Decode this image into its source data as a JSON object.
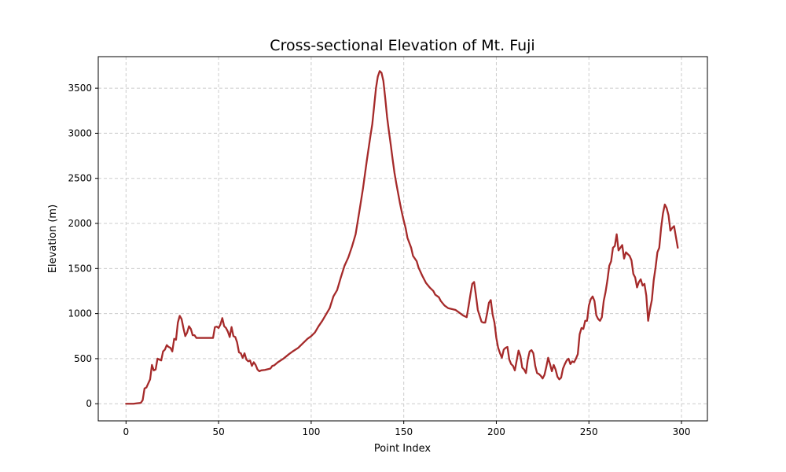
{
  "chart_data": {
    "type": "line",
    "title": "Cross-sectional Elevation of Mt. Fuji",
    "xlabel": "Point Index",
    "ylabel": "Elevation (m)",
    "xlim": [
      -15,
      314
    ],
    "ylim": [
      -190,
      3850
    ],
    "x_ticks": [
      0,
      50,
      100,
      150,
      200,
      250,
      300
    ],
    "y_ticks": [
      0,
      500,
      1000,
      1500,
      2000,
      2500,
      3000,
      3500
    ],
    "grid": true,
    "grid_style": "dashed",
    "line_color": "#a52a2a",
    "series": [
      {
        "points": [
          [
            0,
            0
          ],
          [
            2,
            0
          ],
          [
            4,
            0
          ],
          [
            6,
            5
          ],
          [
            8,
            10
          ],
          [
            9,
            40
          ],
          [
            10,
            170
          ],
          [
            11,
            180
          ],
          [
            13,
            270
          ],
          [
            14,
            430
          ],
          [
            15,
            370
          ],
          [
            16,
            380
          ],
          [
            17,
            500
          ],
          [
            18,
            490
          ],
          [
            19,
            480
          ],
          [
            20,
            580
          ],
          [
            21,
            600
          ],
          [
            22,
            650
          ],
          [
            23,
            630
          ],
          [
            24,
            620
          ],
          [
            25,
            580
          ],
          [
            26,
            720
          ],
          [
            27,
            710
          ],
          [
            28,
            900
          ],
          [
            29,
            975
          ],
          [
            30,
            940
          ],
          [
            31,
            840
          ],
          [
            32,
            750
          ],
          [
            33,
            790
          ],
          [
            34,
            860
          ],
          [
            35,
            830
          ],
          [
            36,
            760
          ],
          [
            37,
            760
          ],
          [
            38,
            730
          ],
          [
            40,
            730
          ],
          [
            42,
            730
          ],
          [
            45,
            730
          ],
          [
            47,
            730
          ],
          [
            48,
            850
          ],
          [
            49,
            855
          ],
          [
            50,
            840
          ],
          [
            51,
            880
          ],
          [
            52,
            950
          ],
          [
            53,
            860
          ],
          [
            54,
            840
          ],
          [
            55,
            800
          ],
          [
            56,
            740
          ],
          [
            57,
            850
          ],
          [
            58,
            750
          ],
          [
            59,
            740
          ],
          [
            60,
            680
          ],
          [
            61,
            570
          ],
          [
            62,
            560
          ],
          [
            63,
            510
          ],
          [
            64,
            560
          ],
          [
            65,
            490
          ],
          [
            66,
            470
          ],
          [
            67,
            480
          ],
          [
            68,
            420
          ],
          [
            69,
            460
          ],
          [
            70,
            430
          ],
          [
            71,
            380
          ],
          [
            72,
            360
          ],
          [
            73,
            370
          ],
          [
            75,
            375
          ],
          [
            78,
            390
          ],
          [
            79,
            420
          ],
          [
            80,
            425
          ],
          [
            82,
            460
          ],
          [
            85,
            500
          ],
          [
            88,
            550
          ],
          [
            90,
            580
          ],
          [
            93,
            620
          ],
          [
            95,
            660
          ],
          [
            98,
            720
          ],
          [
            100,
            750
          ],
          [
            102,
            790
          ],
          [
            104,
            860
          ],
          [
            106,
            920
          ],
          [
            108,
            990
          ],
          [
            110,
            1060
          ],
          [
            112,
            1190
          ],
          [
            114,
            1260
          ],
          [
            116,
            1400
          ],
          [
            118,
            1530
          ],
          [
            120,
            1620
          ],
          [
            122,
            1740
          ],
          [
            124,
            1880
          ],
          [
            126,
            2130
          ],
          [
            128,
            2390
          ],
          [
            130,
            2690
          ],
          [
            132,
            2970
          ],
          [
            133,
            3100
          ],
          [
            134,
            3300
          ],
          [
            135,
            3500
          ],
          [
            136,
            3630
          ],
          [
            137,
            3690
          ],
          [
            138,
            3670
          ],
          [
            139,
            3580
          ],
          [
            140,
            3390
          ],
          [
            141,
            3180
          ],
          [
            142,
            3020
          ],
          [
            143,
            2870
          ],
          [
            144,
            2710
          ],
          [
            145,
            2560
          ],
          [
            146,
            2440
          ],
          [
            147,
            2330
          ],
          [
            148,
            2220
          ],
          [
            149,
            2120
          ],
          [
            150,
            2030
          ],
          [
            151,
            1950
          ],
          [
            152,
            1840
          ],
          [
            154,
            1730
          ],
          [
            155,
            1640
          ],
          [
            157,
            1580
          ],
          [
            158,
            1510
          ],
          [
            160,
            1420
          ],
          [
            162,
            1340
          ],
          [
            164,
            1290
          ],
          [
            166,
            1250
          ],
          [
            167,
            1210
          ],
          [
            169,
            1180
          ],
          [
            170,
            1140
          ],
          [
            172,
            1090
          ],
          [
            174,
            1060
          ],
          [
            176,
            1050
          ],
          [
            178,
            1040
          ],
          [
            180,
            1010
          ],
          [
            182,
            980
          ],
          [
            184,
            960
          ],
          [
            185,
            1080
          ],
          [
            186,
            1210
          ],
          [
            187,
            1330
          ],
          [
            188,
            1350
          ],
          [
            189,
            1200
          ],
          [
            190,
            1040
          ],
          [
            192,
            910
          ],
          [
            193,
            900
          ],
          [
            194,
            900
          ],
          [
            195,
            1000
          ],
          [
            196,
            1120
          ],
          [
            197,
            1150
          ],
          [
            198,
            990
          ],
          [
            199,
            900
          ],
          [
            200,
            730
          ],
          [
            201,
            620
          ],
          [
            202,
            560
          ],
          [
            203,
            510
          ],
          [
            204,
            600
          ],
          [
            205,
            620
          ],
          [
            206,
            630
          ],
          [
            207,
            490
          ],
          [
            208,
            440
          ],
          [
            209,
            420
          ],
          [
            210,
            370
          ],
          [
            211,
            480
          ],
          [
            212,
            590
          ],
          [
            213,
            530
          ],
          [
            214,
            400
          ],
          [
            215,
            380
          ],
          [
            216,
            340
          ],
          [
            217,
            490
          ],
          [
            218,
            580
          ],
          [
            219,
            595
          ],
          [
            220,
            560
          ],
          [
            221,
            420
          ],
          [
            222,
            340
          ],
          [
            223,
            330
          ],
          [
            224,
            310
          ],
          [
            225,
            280
          ],
          [
            226,
            320
          ],
          [
            227,
            410
          ],
          [
            228,
            510
          ],
          [
            229,
            440
          ],
          [
            230,
            360
          ],
          [
            231,
            430
          ],
          [
            232,
            380
          ],
          [
            233,
            300
          ],
          [
            234,
            270
          ],
          [
            235,
            290
          ],
          [
            236,
            390
          ],
          [
            237,
            440
          ],
          [
            238,
            480
          ],
          [
            239,
            500
          ],
          [
            240,
            440
          ],
          [
            241,
            470
          ],
          [
            242,
            460
          ],
          [
            243,
            500
          ],
          [
            244,
            550
          ],
          [
            245,
            770
          ],
          [
            246,
            840
          ],
          [
            247,
            830
          ],
          [
            248,
            920
          ],
          [
            249,
            920
          ],
          [
            250,
            1090
          ],
          [
            251,
            1160
          ],
          [
            252,
            1190
          ],
          [
            253,
            1140
          ],
          [
            254,
            980
          ],
          [
            255,
            940
          ],
          [
            256,
            920
          ],
          [
            257,
            960
          ],
          [
            258,
            1140
          ],
          [
            259,
            1240
          ],
          [
            260,
            1370
          ],
          [
            261,
            1530
          ],
          [
            262,
            1580
          ],
          [
            263,
            1730
          ],
          [
            264,
            1750
          ],
          [
            265,
            1880
          ],
          [
            266,
            1700
          ],
          [
            267,
            1730
          ],
          [
            268,
            1760
          ],
          [
            269,
            1610
          ],
          [
            270,
            1680
          ],
          [
            272,
            1640
          ],
          [
            273,
            1590
          ],
          [
            274,
            1440
          ],
          [
            275,
            1400
          ],
          [
            276,
            1290
          ],
          [
            277,
            1350
          ],
          [
            278,
            1380
          ],
          [
            279,
            1310
          ],
          [
            280,
            1330
          ],
          [
            281,
            1200
          ],
          [
            282,
            920
          ],
          [
            283,
            1050
          ],
          [
            284,
            1150
          ],
          [
            285,
            1370
          ],
          [
            286,
            1510
          ],
          [
            287,
            1680
          ],
          [
            288,
            1730
          ],
          [
            289,
            1950
          ],
          [
            290,
            2110
          ],
          [
            291,
            2210
          ],
          [
            292,
            2170
          ],
          [
            293,
            2090
          ],
          [
            294,
            1920
          ],
          [
            295,
            1950
          ],
          [
            296,
            1970
          ],
          [
            297,
            1850
          ],
          [
            298,
            1730
          ]
        ]
      }
    ]
  }
}
